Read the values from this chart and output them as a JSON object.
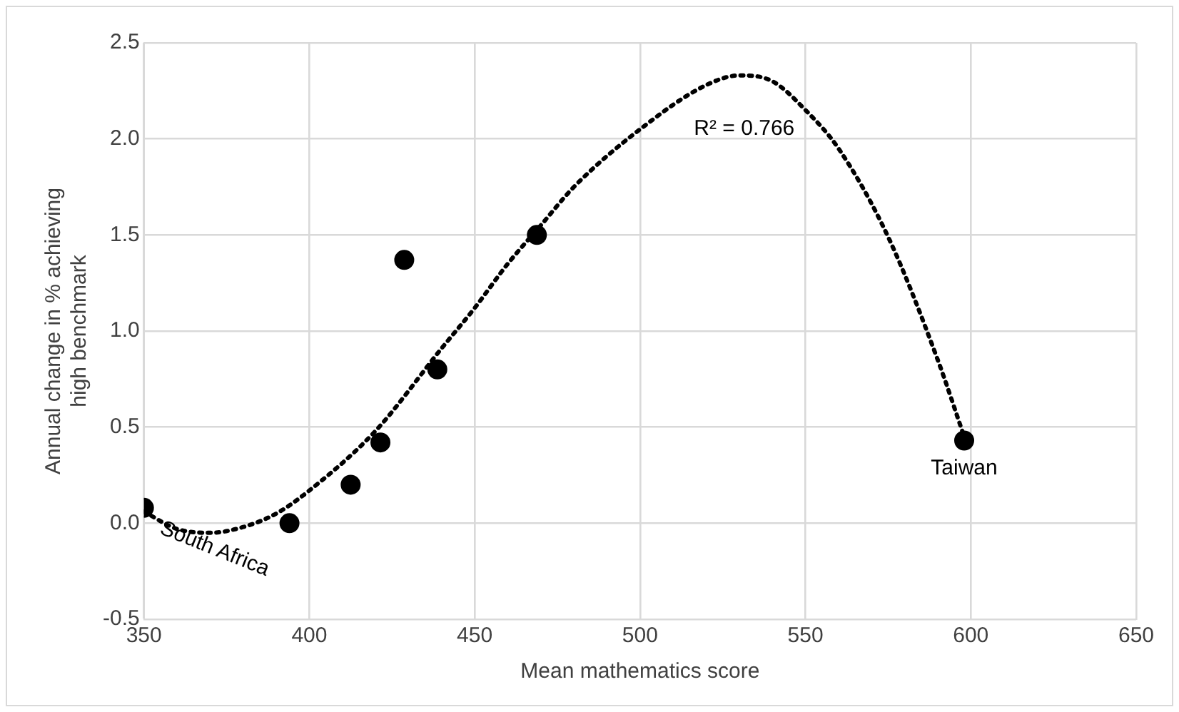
{
  "chart_data": {
    "type": "scatter",
    "xlabel": "Mean mathematics score",
    "ylabel": "Annual change in % achieving high benchmark",
    "xlim": [
      350,
      650
    ],
    "xticks": [
      350,
      400,
      450,
      500,
      550,
      600,
      650
    ],
    "ylim": [
      -0.5,
      2.5
    ],
    "yticks": [
      {
        "value": -0.5,
        "label": "-0.5"
      },
      {
        "value": 0,
        "label": "0.0"
      },
      {
        "value": 0.5,
        "label": "0.5"
      },
      {
        "value": 1,
        "label": "1.0"
      },
      {
        "value": 1.5,
        "label": "1.5"
      },
      {
        "value": 2,
        "label": "2.0"
      },
      {
        "value": 2.5,
        "label": "2.5"
      }
    ],
    "grid": true,
    "legend": false,
    "marker": "circle",
    "series": [
      {
        "color": "#000000",
        "x": [
          350,
          394,
          412.5,
          421.5,
          428.7,
          438.7,
          468.8,
          598
        ],
        "values": [
          0.08,
          0,
          0.2,
          0.42,
          1.37,
          0.8,
          1.5,
          0.43
        ]
      },
      {
        "type": "line",
        "color": "#000000",
        "line_style": "dotted",
        "marker": "none",
        "x": [
          350,
          360,
          370,
          380,
          390,
          400,
          420,
          440,
          450,
          460,
          470,
          480,
          500,
          520,
          530,
          540,
          550,
          560,
          575,
          590,
          598
        ],
        "values": [
          0.06,
          -0.03,
          -0.05,
          -0.02,
          0.05,
          0.17,
          0.48,
          0.91,
          1.12,
          1.35,
          1.55,
          1.75,
          2.05,
          2.28,
          2.33,
          2.3,
          2.15,
          1.95,
          1.49,
          0.85,
          0.45
        ]
      }
    ],
    "annotations": [
      {
        "text": "South Africa",
        "x": 350,
        "y": 0.08
      },
      {
        "text": "Taiwan",
        "x": 598,
        "y": 0.43
      },
      "R² = 0.766"
    ]
  }
}
